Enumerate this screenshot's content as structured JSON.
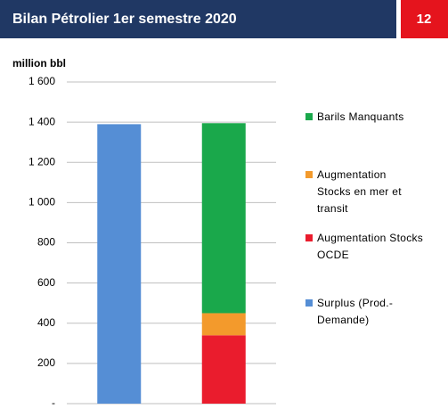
{
  "header": {
    "title": "Bilan Pétrolier 1er semestre 2020",
    "page_number": "12"
  },
  "chart_data": {
    "type": "stacked_bar",
    "y_axis_label": "million bbl",
    "categories": [
      null,
      null
    ],
    "series": [
      {
        "name": "Surplus (Prod.-Demande)",
        "color": "#558ed5",
        "values": [
          1390,
          null
        ]
      },
      {
        "name": "Augmentation Stocks OCDE",
        "color": "#ea1c2d",
        "values": [
          null,
          340
        ]
      },
      {
        "name": "Augmentation Stocks en mer et transit",
        "color": "#f39a2c",
        "values": [
          null,
          110
        ]
      },
      {
        "name": "Barils Manquants",
        "color": "#1aa84b",
        "values": [
          null,
          945
        ]
      }
    ],
    "ylim": [
      0,
      1600
    ],
    "yticks": [
      {
        "value": 0,
        "label": "-"
      },
      200,
      400,
      600,
      800,
      {
        "value": 1000,
        "label": "1 000"
      },
      {
        "value": 1200,
        "label": "1 200"
      },
      {
        "value": 1400,
        "label": "1 400"
      },
      {
        "value": 1600,
        "label": "1 600"
      }
    ],
    "grid": true
  }
}
